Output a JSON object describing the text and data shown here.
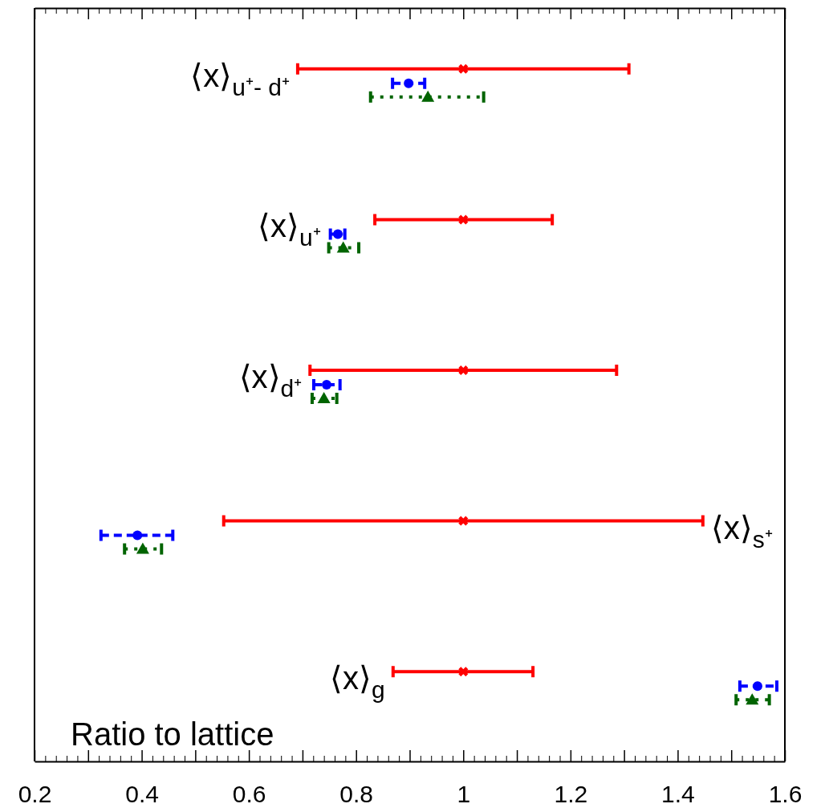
{
  "chart_data": {
    "type": "scatter",
    "orientation": "horizontal",
    "categories": [
      "⟨x⟩$_{u⁺- d⁺}$",
      "⟨x⟩$_{u⁺}$",
      "⟨x⟩$_{d⁺}$",
      "⟨x⟩$_{s⁺}$",
      "⟨x⟩$_{g}$"
    ],
    "series": [
      {
        "color": "#ff0000",
        "marker": "cross",
        "line_style": "solid",
        "values": [
          1,
          1,
          1,
          1,
          1
        ],
        "errors": [
          [
            0.691,
            1.309
          ],
          [
            0.835,
            1.166
          ],
          [
            0.714,
            1.286
          ],
          [
            0.553,
            1.447
          ],
          [
            0.869,
            1.13
          ]
        ]
      },
      {
        "color": "#0000ff",
        "marker": "circle",
        "line_style": "dashed",
        "values": [
          0.898,
          0.766,
          0.745,
          0.392,
          1.549
        ],
        "errors": [
          [
            0.868,
            0.928
          ],
          [
            0.752,
            0.779
          ],
          [
            0.721,
            0.77
          ],
          [
            0.324,
            0.458
          ],
          [
            1.516,
            1.585
          ]
        ]
      },
      {
        "color": "#006400",
        "marker": "triangle",
        "line_style": "dotted",
        "values": [
          0.934,
          0.776,
          0.74,
          0.402,
          1.539
        ],
        "errors": [
          [
            0.827,
            1.038
          ],
          [
            0.749,
            0.805
          ],
          [
            0.718,
            0.764
          ],
          [
            0.368,
            0.437
          ],
          [
            1.509,
            1.571
          ]
        ]
      }
    ],
    "xlim": [
      0.2,
      1.6
    ],
    "xticks": [
      0.2,
      {
        "value": 0.3,
        "label": null
      },
      0.4,
      {
        "value": 0.5,
        "label": null
      },
      0.6,
      {
        "value": 0.7,
        "label": null
      },
      0.8,
      {
        "value": 0.9,
        "label": null
      },
      1,
      {
        "value": 1.1,
        "label": null
      },
      1.2,
      {
        "value": 1.3,
        "label": null
      },
      1.4,
      {
        "value": 1.5,
        "label": null
      },
      1.6
    ],
    "annotations": [
      "Ratio to lattice"
    ]
  }
}
